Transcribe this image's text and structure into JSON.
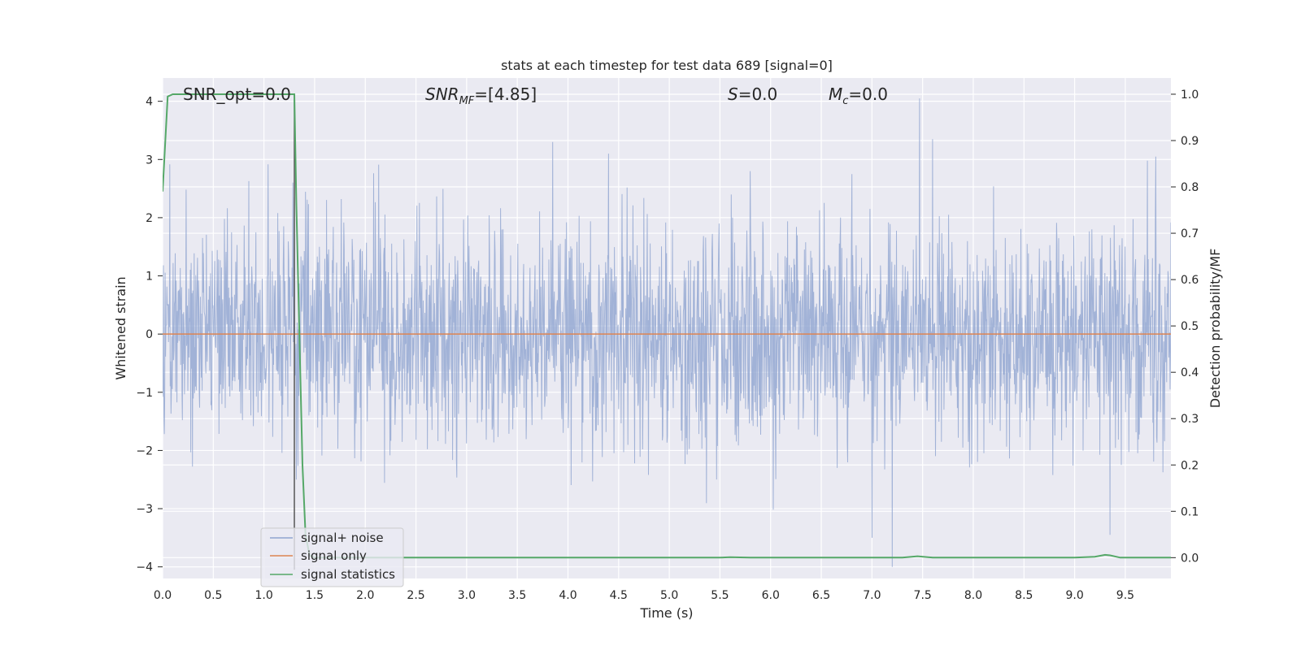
{
  "chart_data": {
    "type": "line",
    "title": "stats at each timestep for test data 689 [signal=0]",
    "xlabel": "Time (s)",
    "ylabel_left": "Whitened strain",
    "ylabel_right": "Detection probability/MF",
    "xlim": [
      0.0,
      9.95
    ],
    "ylim_left": [
      -4.2,
      4.4
    ],
    "ylim_right": [
      -0.045,
      1.035
    ],
    "x_ticks": [
      "0.0",
      "0.5",
      "1.0",
      "1.5",
      "2.0",
      "2.5",
      "3.0",
      "3.5",
      "4.0",
      "4.5",
      "5.0",
      "5.5",
      "6.0",
      "6.5",
      "7.0",
      "7.5",
      "8.0",
      "8.5",
      "9.0",
      "9.5"
    ],
    "y_ticks_left": [
      "−4",
      "−3",
      "−2",
      "−1",
      "0",
      "1",
      "2",
      "3",
      "4"
    ],
    "y_ticks_right": [
      "0.0",
      "0.1",
      "0.2",
      "0.3",
      "0.4",
      "0.5",
      "0.6",
      "0.7",
      "0.8",
      "0.9",
      "1.0"
    ],
    "grid": true,
    "legend_position": "lower-left",
    "annotations": {
      "snr_opt": "SNR_opt=0.0",
      "snr_mf_name": "SNR",
      "snr_mf_sub": "MF",
      "snr_mf_value": "=[4.85]",
      "s_name": "S",
      "s_value": "=0.0",
      "mc_name": "M",
      "mc_sub": "c",
      "mc_value": "=0.0"
    },
    "series": [
      {
        "name": "signal+ noise",
        "axis": "left",
        "color": "#8fa4cf",
        "note": "dense white noise, amplitude mostly within ±2.5, peaks ~±4",
        "peaks": [
          {
            "x": 1.3,
            "y": 2.35
          },
          {
            "x": 1.32,
            "y": -2.5
          },
          {
            "x": 3.85,
            "y": 3.3
          },
          {
            "x": 4.4,
            "y": 3.1
          },
          {
            "x": 5.8,
            "y": 2.8
          },
          {
            "x": 6.8,
            "y": 2.75
          },
          {
            "x": 7.0,
            "y": -3.5
          },
          {
            "x": 7.2,
            "y": -4.0
          },
          {
            "x": 7.47,
            "y": 4.05
          },
          {
            "x": 7.6,
            "y": 3.35
          },
          {
            "x": 9.35,
            "y": -3.45
          },
          {
            "x": 9.8,
            "y": 3.05
          }
        ]
      },
      {
        "name": "signal only",
        "axis": "left",
        "color": "#dd8452",
        "x": [
          0.0,
          9.95
        ],
        "y": [
          0.0,
          0.0
        ]
      },
      {
        "name": "signal statistics",
        "axis": "right",
        "color": "#55a868",
        "x": [
          0.0,
          0.05,
          0.1,
          0.2,
          0.5,
          1.0,
          1.25,
          1.3,
          1.32,
          1.35,
          1.38,
          1.41,
          1.45,
          1.5,
          2.0,
          3.0,
          4.0,
          5.0,
          5.5,
          5.6,
          5.8,
          6.0,
          7.0,
          7.3,
          7.45,
          7.6,
          8.0,
          9.0,
          9.2,
          9.3,
          9.35,
          9.45,
          9.95
        ],
        "y": [
          0.79,
          0.995,
          1.0,
          1.0,
          1.0,
          1.0,
          1.0,
          1.0,
          0.76,
          0.48,
          0.2,
          0.05,
          0.005,
          0.0,
          0.0,
          0.0,
          0.0,
          0.0,
          0.0,
          0.001,
          0.0,
          0.0,
          0.0,
          0.0,
          0.003,
          0.0,
          0.0,
          0.0,
          0.002,
          0.006,
          0.005,
          0.0,
          0.0
        ]
      }
    ],
    "vline": {
      "x": 1.3,
      "color": "#555555"
    }
  }
}
